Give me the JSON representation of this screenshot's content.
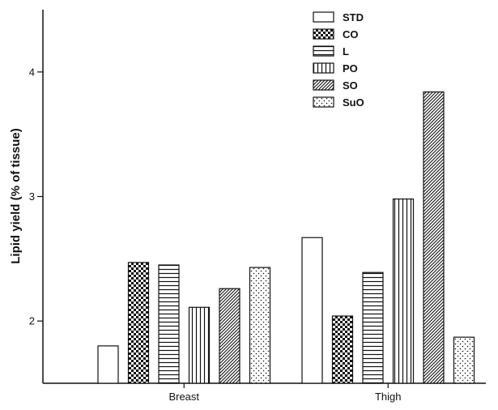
{
  "chart_data": {
    "type": "bar",
    "title": "",
    "xlabel": "",
    "ylabel": "Lipid yield (% of tissue)",
    "ylim": [
      1.5,
      4.5
    ],
    "yticks": [
      2,
      3,
      4
    ],
    "categories": [
      "Breast",
      "Thigh"
    ],
    "series": [
      {
        "name": "STD",
        "pattern": "open",
        "values": [
          1.8,
          2.67
        ]
      },
      {
        "name": "CO",
        "pattern": "checker",
        "values": [
          2.47,
          2.04
        ]
      },
      {
        "name": "L",
        "pattern": "horizontal-lines",
        "values": [
          2.45,
          2.39
        ]
      },
      {
        "name": "PO",
        "pattern": "vertical-lines",
        "values": [
          2.11,
          2.98
        ]
      },
      {
        "name": "SO",
        "pattern": "diagonal-lines",
        "values": [
          2.26,
          3.84
        ]
      },
      {
        "name": "SuO",
        "pattern": "dots",
        "values": [
          2.43,
          1.87
        ]
      }
    ],
    "legend_position": "top-right",
    "grid": false,
    "colors": {
      "stroke": "#111111",
      "fill": "#ffffff"
    }
  }
}
